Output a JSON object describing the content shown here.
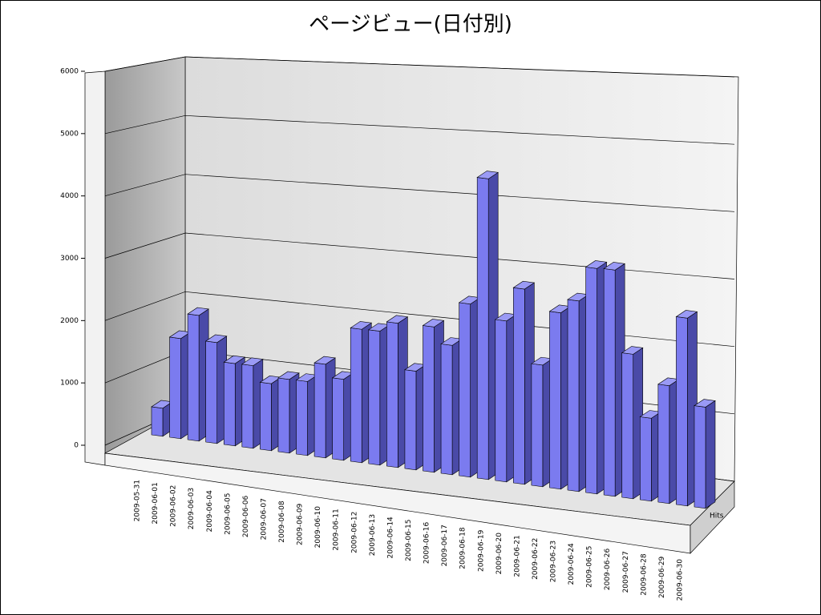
{
  "chart_data": {
    "type": "bar3d",
    "title": "ページビュー(日付別)",
    "categories": [
      "2009-05-31",
      "2009-06-01",
      "2009-06-02",
      "2009-06-03",
      "2009-06-04",
      "2009-06-05",
      "2009-06-06",
      "2009-06-07",
      "2009-06-08",
      "2009-06-09",
      "2009-06-10",
      "2009-06-11",
      "2009-06-12",
      "2009-06-13",
      "2009-06-14",
      "2009-06-15",
      "2009-06-16",
      "2009-06-17",
      "2009-06-18",
      "2009-06-19",
      "2009-06-20",
      "2009-06-21",
      "2009-06-22",
      "2009-06-23",
      "2009-06-24",
      "2009-06-25",
      "2009-06-26",
      "2009-06-27",
      "2009-06-28",
      "2009-06-29",
      "2009-06-30"
    ],
    "series": [
      {
        "name": "Hits",
        "color": "#7b7bef",
        "values": [
          450,
          1600,
          2000,
          1600,
          1300,
          1300,
          1050,
          1150,
          1150,
          1450,
          1250,
          2050,
          2050,
          2200,
          1500,
          2200,
          1950,
          2600,
          4500,
          2400,
          2900,
          1800,
          2600,
          2800,
          3300,
          3300,
          2100,
          1200,
          1700,
          2700,
          1450
        ]
      }
    ],
    "ylim": [
      0,
      6000
    ],
    "yticks": [
      0,
      1000,
      2000,
      3000,
      4000,
      5000,
      6000
    ],
    "grid": true
  }
}
